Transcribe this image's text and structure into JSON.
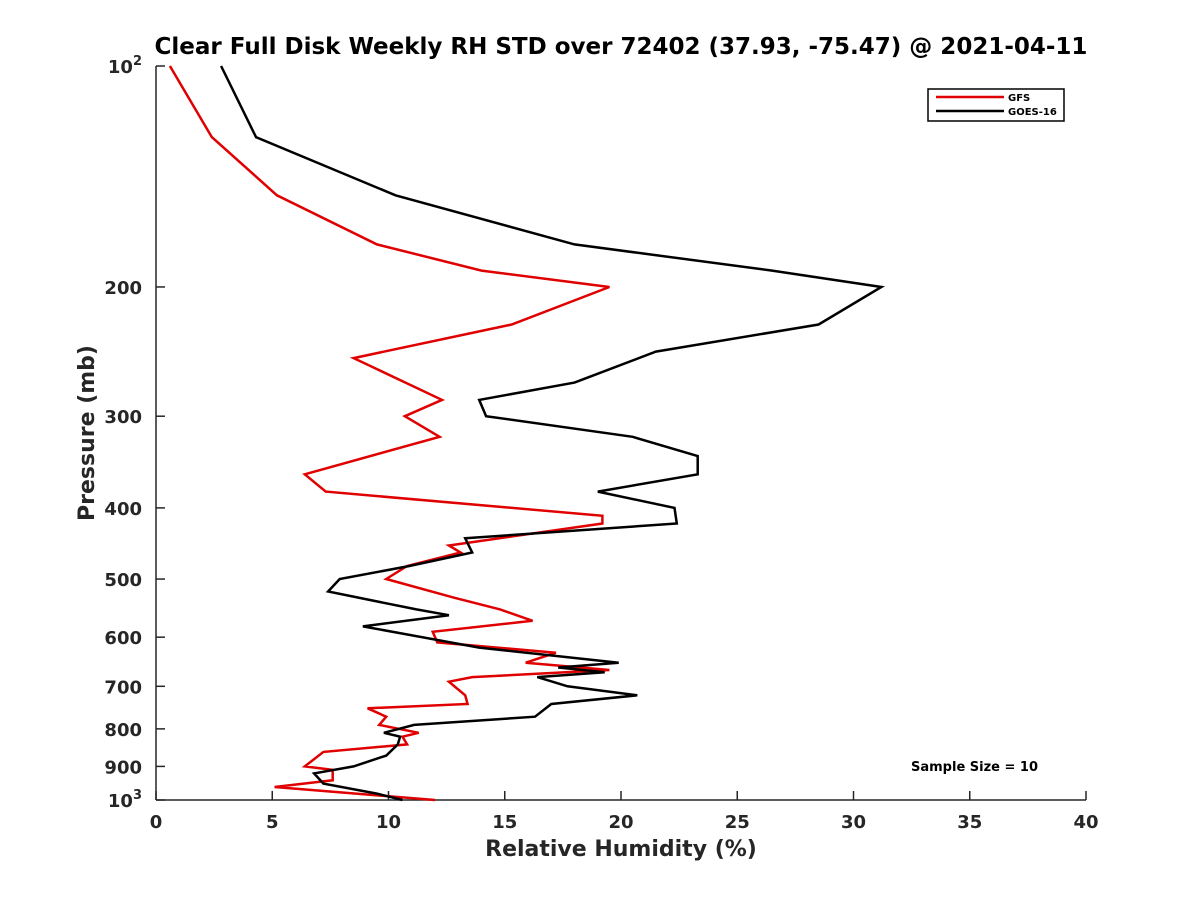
{
  "chart_data": {
    "type": "line",
    "title": "Clear Full Disk Weekly RH STD over 72402 (37.93, -75.47) @ 2021-04-11",
    "xlabel": "Relative Humidity (%)",
    "ylabel": "Pressure (mb)",
    "xlim": [
      0,
      40
    ],
    "ylim": [
      100,
      1000
    ],
    "yscale": "log",
    "y_direction": "reverse",
    "grid": false,
    "x_ticks": [
      0,
      5,
      10,
      15,
      20,
      25,
      30,
      35,
      40
    ],
    "x_tick_labels": [
      "0",
      "5",
      "10",
      "15",
      "20",
      "25",
      "30",
      "35",
      "40"
    ],
    "y_ticks": [
      100,
      200,
      300,
      400,
      500,
      600,
      700,
      800,
      900,
      1000
    ],
    "y_tick_labels": [
      {
        "base": "10",
        "exp": "2"
      },
      {
        "base": "200",
        "exp": ""
      },
      {
        "base": "300",
        "exp": ""
      },
      {
        "base": "400",
        "exp": ""
      },
      {
        "base": "500",
        "exp": ""
      },
      {
        "base": "600",
        "exp": ""
      },
      {
        "base": "700",
        "exp": ""
      },
      {
        "base": "800",
        "exp": ""
      },
      {
        "base": "900",
        "exp": ""
      },
      {
        "base": "10",
        "exp": "3"
      }
    ],
    "legend_position": "top-right",
    "annotation": "Sample Size = 10",
    "series": [
      {
        "name": "GFS",
        "color": "#e00000",
        "points": [
          [
            0.6,
            100
          ],
          [
            2.4,
            125
          ],
          [
            5.2,
            150
          ],
          [
            9.5,
            175
          ],
          [
            14,
            190
          ],
          [
            19.5,
            200
          ],
          [
            15.3,
            225
          ],
          [
            8.5,
            250
          ],
          [
            12.3,
            285
          ],
          [
            10.7,
            300
          ],
          [
            12.2,
            320
          ],
          [
            6.4,
            360
          ],
          [
            7.3,
            380
          ],
          [
            19.2,
            410
          ],
          [
            19.2,
            420
          ],
          [
            12.6,
            450
          ],
          [
            13.1,
            460
          ],
          [
            10.8,
            480
          ],
          [
            9.9,
            500
          ],
          [
            12.8,
            530
          ],
          [
            14.8,
            550
          ],
          [
            16.2,
            570
          ],
          [
            11.9,
            590
          ],
          [
            12.1,
            610
          ],
          [
            17.2,
            630
          ],
          [
            15.9,
            650
          ],
          [
            19.5,
            665
          ],
          [
            13.6,
            680
          ],
          [
            12.6,
            690
          ],
          [
            13.3,
            720
          ],
          [
            13.4,
            740
          ],
          [
            9.1,
            750
          ],
          [
            9.9,
            770
          ],
          [
            9.6,
            790
          ],
          [
            11.3,
            810
          ],
          [
            10.6,
            820
          ],
          [
            10.8,
            840
          ],
          [
            7.2,
            860
          ],
          [
            6.4,
            900
          ],
          [
            7.6,
            910
          ],
          [
            7.6,
            940
          ],
          [
            5.1,
            960
          ],
          [
            12,
            1000
          ]
        ]
      },
      {
        "name": "GOES-16",
        "color": "#000000",
        "points": [
          [
            2.8,
            100
          ],
          [
            4.3,
            125
          ],
          [
            10.3,
            150
          ],
          [
            18,
            175
          ],
          [
            26.5,
            190
          ],
          [
            31.2,
            200
          ],
          [
            28.5,
            225
          ],
          [
            21.5,
            245
          ],
          [
            18,
            270
          ],
          [
            13.9,
            285
          ],
          [
            14.2,
            300
          ],
          [
            20.5,
            320
          ],
          [
            23.3,
            340
          ],
          [
            23.3,
            360
          ],
          [
            19,
            380
          ],
          [
            22.3,
            400
          ],
          [
            22.4,
            420
          ],
          [
            13.3,
            440
          ],
          [
            13.6,
            460
          ],
          [
            10.9,
            480
          ],
          [
            7.9,
            500
          ],
          [
            7.4,
            520
          ],
          [
            11.2,
            550
          ],
          [
            12.6,
            560
          ],
          [
            8.9,
            580
          ],
          [
            13.9,
            620
          ],
          [
            19.9,
            650
          ],
          [
            17.3,
            660
          ],
          [
            19.3,
            670
          ],
          [
            16.4,
            680
          ],
          [
            17.7,
            700
          ],
          [
            20.7,
            720
          ],
          [
            17,
            740
          ],
          [
            16.3,
            770
          ],
          [
            11.1,
            790
          ],
          [
            9.8,
            810
          ],
          [
            10.5,
            820
          ],
          [
            10.4,
            840
          ],
          [
            9.9,
            870
          ],
          [
            8.5,
            900
          ],
          [
            6.8,
            920
          ],
          [
            7.2,
            950
          ],
          [
            9.5,
            980
          ],
          [
            10.6,
            1000
          ]
        ]
      }
    ]
  }
}
